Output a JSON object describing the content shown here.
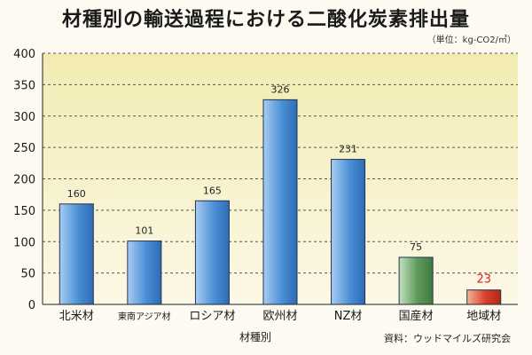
{
  "header": {
    "title": "材種別の輸送過程における二酸化炭素排出量",
    "unit": "（単位：kg-CO2/㎥）"
  },
  "footer": {
    "xlabel": "材種別",
    "source": "資料：ウッドマイルズ研究会"
  },
  "colors": {
    "blue": "#4a8fd6",
    "green": "#5c9a5a",
    "red": "#d8402a",
    "highlight_label": "#e02020"
  },
  "chart_data": {
    "type": "bar",
    "title": "材種別の輸送過程における二酸化炭素排出量",
    "xlabel": "材種別",
    "ylabel": "",
    "ylim": [
      0,
      400
    ],
    "yticks": [
      0,
      50,
      100,
      150,
      200,
      250,
      300,
      350,
      400
    ],
    "grid": true,
    "categories": [
      "北米材",
      "東南アジア材",
      "ロシア材",
      "欧州材",
      "NZ材",
      "国産材",
      "地域材"
    ],
    "values": [
      160,
      101,
      165,
      326,
      231,
      75,
      23
    ],
    "bar_colors": [
      "blue",
      "blue",
      "blue",
      "blue",
      "blue",
      "green",
      "red"
    ]
  }
}
